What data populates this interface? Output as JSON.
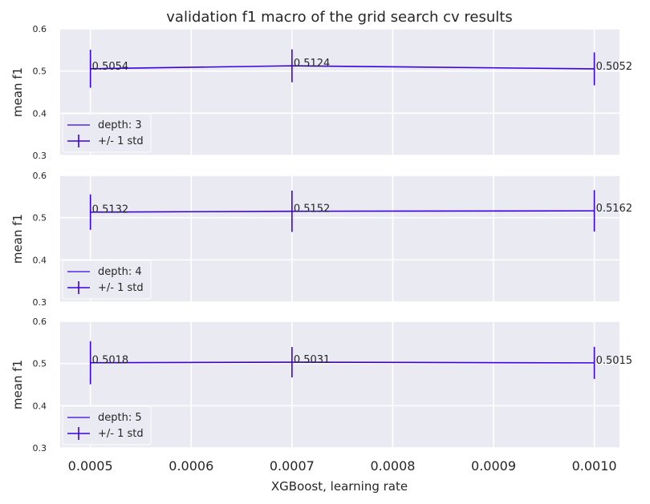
{
  "chart_data": {
    "type": "line",
    "title": "validation f1 macro of the grid search cv results",
    "xlabel": "XGBoost, learning rate",
    "ylabel": "mean f1",
    "x": [
      0.0005,
      0.0007,
      0.001
    ],
    "xlim": [
      0.00047,
      0.001025
    ],
    "xticks": [
      "0.0005",
      "0.0006",
      "0.0007",
      "0.0008",
      "0.0009",
      "0.0010"
    ],
    "ylim": [
      0.3,
      0.6
    ],
    "yticks": [
      "0.3",
      "0.4",
      "0.5",
      "0.6"
    ],
    "line_color": "#3a00e0",
    "grid": true,
    "legend_position": "lower-left",
    "error_label": "+/- 1 std",
    "panels": [
      {
        "series_name": "depth: 3",
        "values": [
          0.5054,
          0.5124,
          0.5052
        ],
        "std": [
          0.045,
          0.039,
          0.039
        ],
        "labels": [
          "0.5054",
          "0.5124",
          "0.5052"
        ]
      },
      {
        "series_name": "depth: 4",
        "values": [
          0.5132,
          0.5152,
          0.5162
        ],
        "std": [
          0.042,
          0.049,
          0.049
        ],
        "labels": [
          "0.5132",
          "0.5152",
          "0.5162"
        ]
      },
      {
        "series_name": "depth: 5",
        "values": [
          0.5018,
          0.5031,
          0.5015
        ],
        "std": [
          0.051,
          0.036,
          0.038
        ],
        "labels": [
          "0.5018",
          "0.5031",
          "0.5015"
        ]
      }
    ]
  }
}
